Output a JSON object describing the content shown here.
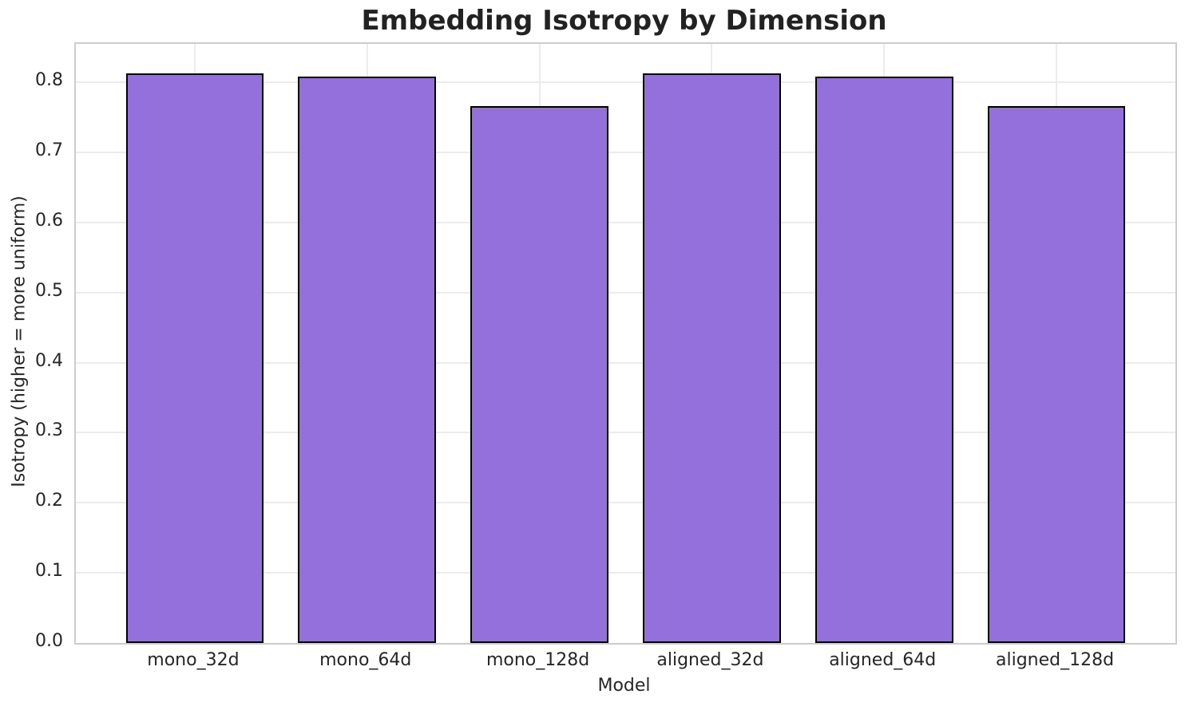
{
  "title": "Embedding Isotropy by Dimension",
  "chart_data": {
    "type": "bar",
    "title": "Embedding Isotropy by Dimension",
    "xlabel": "Model",
    "ylabel": "Isotropy (higher = more uniform)",
    "categories": [
      "mono_32d",
      "mono_64d",
      "mono_128d",
      "aligned_32d",
      "aligned_64d",
      "aligned_128d"
    ],
    "values": [
      0.813,
      0.808,
      0.766,
      0.813,
      0.808,
      0.766
    ],
    "yticks": [
      0.0,
      0.1,
      0.2,
      0.3,
      0.4,
      0.5,
      0.6,
      0.7,
      0.8
    ],
    "ylim": [
      0,
      0.855
    ],
    "bar_width_fraction": 0.8,
    "grid": true,
    "legend": "none",
    "colors": {
      "bar_fill": "#9370DB",
      "bar_edge": "#000000",
      "grid": "#ececec",
      "spine": "#cccccc",
      "text": "#262626",
      "title_text": "#222222",
      "background": "#ffffff"
    }
  }
}
